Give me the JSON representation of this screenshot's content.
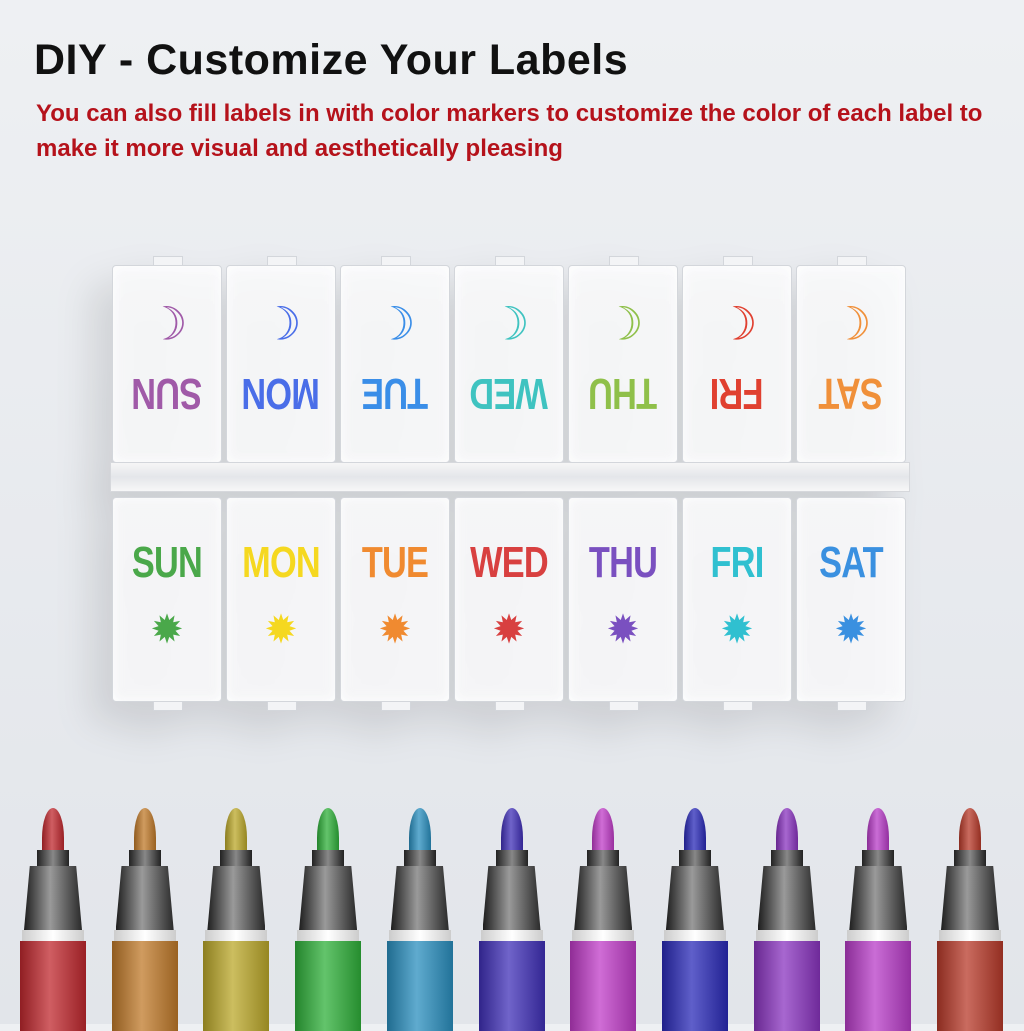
{
  "title": "DIY - Customize Your Labels",
  "subtitle": "You can also fill labels in with color markers to customize the color of each label to make it more visual and aesthetically pleasing",
  "night_row": [
    {
      "day": "SUN",
      "color": "#a05aa8",
      "icon": "moon-icon"
    },
    {
      "day": "MON",
      "color": "#4a6ee8",
      "icon": "moon-icon"
    },
    {
      "day": "TUE",
      "color": "#3a8ee8",
      "icon": "moon-icon"
    },
    {
      "day": "WED",
      "color": "#3fc3c0",
      "icon": "moon-icon"
    },
    {
      "day": "THU",
      "color": "#8fc04a",
      "icon": "moon-icon"
    },
    {
      "day": "FRI",
      "color": "#e04030",
      "icon": "moon-icon"
    },
    {
      "day": "SAT",
      "color": "#f0903a",
      "icon": "moon-icon"
    }
  ],
  "day_row": [
    {
      "day": "SUN",
      "color": "#4aa84a",
      "icon": "sun-icon"
    },
    {
      "day": "MON",
      "color": "#f5d820",
      "icon": "sun-icon"
    },
    {
      "day": "TUE",
      "color": "#f08a30",
      "icon": "sun-icon"
    },
    {
      "day": "WED",
      "color": "#d84040",
      "icon": "sun-icon"
    },
    {
      "day": "THU",
      "color": "#7a50c0",
      "icon": "sun-icon"
    },
    {
      "day": "FRI",
      "color": "#30c0d0",
      "icon": "sun-icon"
    },
    {
      "day": "SAT",
      "color": "#3a90e0",
      "icon": "sun-icon"
    }
  ],
  "marker_colors": [
    "#c0282e",
    "#c07a2a",
    "#bba82a",
    "#2fb03a",
    "#2a8fbf",
    "#4030b8",
    "#c03cc8",
    "#2a2ab8",
    "#8a34c0",
    "#b83cc8",
    "#b83a2a"
  ]
}
